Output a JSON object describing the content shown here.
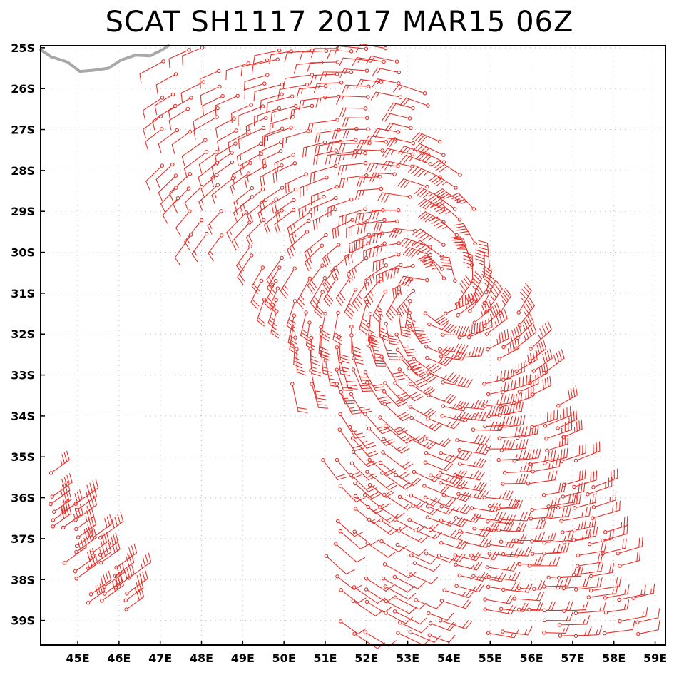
{
  "title": "SCAT SH1117 2017 MAR15 06Z",
  "colors": {
    "barb": "#e8302a",
    "coast": "#a8a8a8",
    "grid": "#bdbdbd",
    "frame": "#000000"
  },
  "map": {
    "lon_range": [
      44.1,
      59.25
    ],
    "lat_range": [
      -39.6,
      -24.95
    ],
    "lon_ticks": [
      {
        "value": 45,
        "label": "45E"
      },
      {
        "value": 46,
        "label": "46E"
      },
      {
        "value": 47,
        "label": "47E"
      },
      {
        "value": 48,
        "label": "48E"
      },
      {
        "value": 49,
        "label": "49E"
      },
      {
        "value": 50,
        "label": "50E"
      },
      {
        "value": 51,
        "label": "51E"
      },
      {
        "value": 52,
        "label": "52E"
      },
      {
        "value": 53,
        "label": "53E"
      },
      {
        "value": 54,
        "label": "54E"
      },
      {
        "value": 55,
        "label": "55E"
      },
      {
        "value": 56,
        "label": "56E"
      },
      {
        "value": 57,
        "label": "57E"
      },
      {
        "value": 58,
        "label": "58E"
      },
      {
        "value": 59,
        "label": "59E"
      }
    ],
    "lat_ticks": [
      {
        "value": -25,
        "label": "25S"
      },
      {
        "value": -26,
        "label": "26S"
      },
      {
        "value": -27,
        "label": "27S"
      },
      {
        "value": -28,
        "label": "28S"
      },
      {
        "value": -29,
        "label": "29S"
      },
      {
        "value": -30,
        "label": "30S"
      },
      {
        "value": -31,
        "label": "31S"
      },
      {
        "value": -32,
        "label": "32S"
      },
      {
        "value": -33,
        "label": "33S"
      },
      {
        "value": -34,
        "label": "34S"
      },
      {
        "value": -35,
        "label": "35S"
      },
      {
        "value": -36,
        "label": "36S"
      },
      {
        "value": -37,
        "label": "37S"
      },
      {
        "value": -38,
        "label": "38S"
      },
      {
        "value": -39,
        "label": "39S"
      }
    ],
    "coastline_lonlat": [
      [
        44.1,
        -25.05
      ],
      [
        44.35,
        -25.22
      ],
      [
        44.75,
        -25.35
      ],
      [
        45.05,
        -25.58
      ],
      [
        45.4,
        -25.55
      ],
      [
        45.75,
        -25.5
      ],
      [
        46.05,
        -25.3
      ],
      [
        46.4,
        -25.18
      ],
      [
        46.75,
        -25.2
      ],
      [
        47.05,
        -25.05
      ],
      [
        47.2,
        -24.95
      ]
    ],
    "cyclone_center": {
      "lon": 53.55,
      "lat": -31.1
    },
    "wind_barb_swaths": [
      {
        "name": "main-swath",
        "lon_min": 47.0,
        "lon_max": 58.6,
        "lat_min": -39.6,
        "lat_max": -25.0
      },
      {
        "name": "west-swath",
        "lon_min": 44.1,
        "lon_max": 46.2,
        "lat_min": -39.0,
        "lat_max": -35.3
      },
      {
        "name": "small-cluster",
        "lon_min": 51.0,
        "lon_max": 51.8,
        "lat_min": -36.0,
        "lat_max": -35.0
      }
    ]
  }
}
